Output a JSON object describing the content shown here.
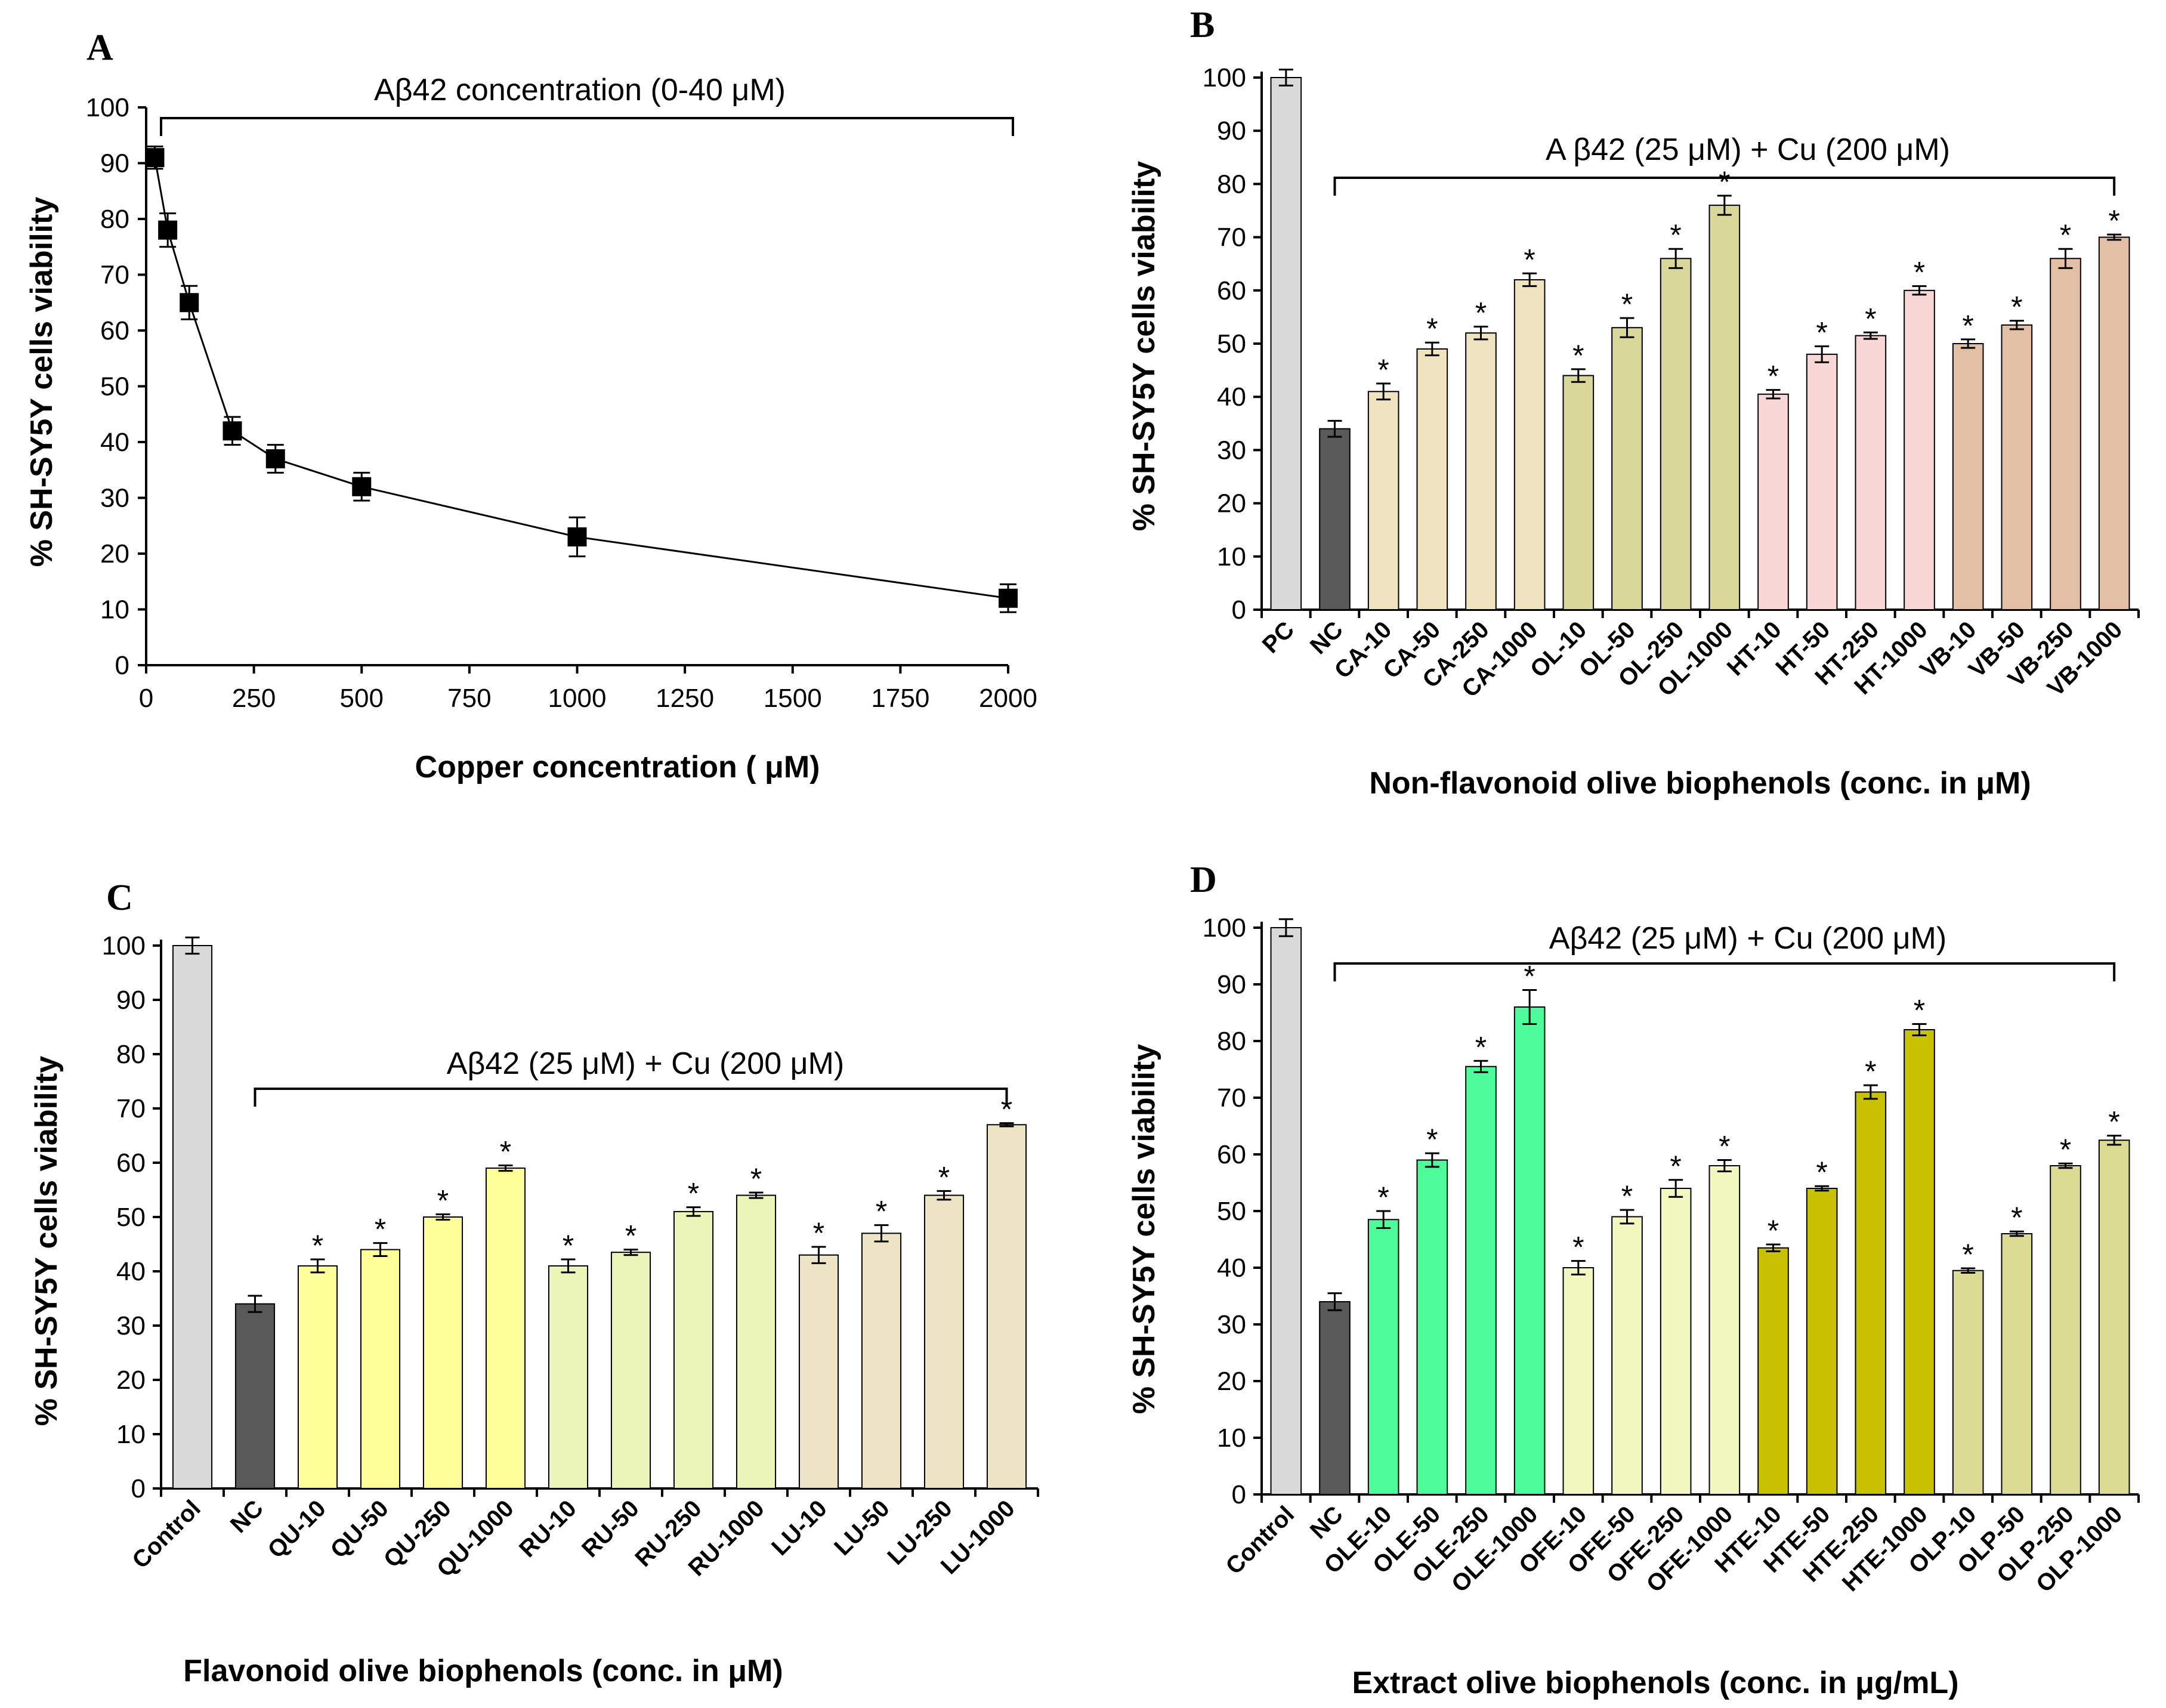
{
  "chart_data": [
    {
      "panel": "A",
      "type": "line",
      "title": "",
      "xlabel": "Copper concentration ( μM)",
      "ylabel": "% SH-SY5Y  cells viability",
      "xlim": [
        0,
        2000
      ],
      "ylim": [
        0,
        100
      ],
      "xticks": [
        "0",
        "250",
        "500",
        "750",
        "1000",
        "1250",
        "1500",
        "1750",
        "2000"
      ],
      "yticks": [
        "0",
        "10",
        "20",
        "30",
        "40",
        "50",
        "60",
        "70",
        "80",
        "90",
        "100"
      ],
      "bracket_label": "Aβ42  concentration  (0-40 μM)",
      "series": [
        {
          "name": "viability",
          "x": [
            20,
            50,
            100,
            200,
            300,
            500,
            1000,
            2000
          ],
          "y": [
            91,
            78,
            65,
            42,
            37,
            32,
            23,
            12
          ],
          "err": [
            2,
            3,
            3,
            2.5,
            2.5,
            2.5,
            3.5,
            2.5
          ]
        }
      ]
    },
    {
      "panel": "B",
      "type": "bar",
      "title": "",
      "xlabel": "Non-flavonoid olive biophenols (conc. in          μM)",
      "ylabel": "% SH-SY5Y cells viability",
      "ylim": [
        0,
        100
      ],
      "yticks": [
        "0",
        "10",
        "20",
        "30",
        "40",
        "50",
        "60",
        "70",
        "80",
        "90",
        "100"
      ],
      "bracket_label": "A β42 (25  μM) + Cu (200  μM)",
      "categories": [
        "PC",
        "NC",
        "CA-10",
        "CA-50",
        "CA-250",
        "CA-1000",
        "OL-10",
        "OL-50",
        "OL-250",
        "OL-1000",
        "HT-10",
        "HT-50",
        "HT-250",
        "HT-1000",
        "VB-10",
        "VB-50",
        "VB-250",
        "VB-1000"
      ],
      "values": [
        100,
        34,
        41,
        49,
        52,
        62,
        44,
        53,
        66,
        76,
        40.5,
        48,
        51.5,
        60,
        50,
        53.5,
        66,
        70
      ],
      "errors": [
        1.5,
        1.5,
        1.5,
        1.2,
        1.2,
        1.2,
        1.2,
        1.8,
        1.8,
        1.8,
        0.8,
        1.5,
        0.6,
        0.8,
        0.8,
        0.8,
        1.8,
        0.5
      ],
      "significant": [
        false,
        false,
        true,
        true,
        true,
        true,
        true,
        true,
        true,
        true,
        true,
        true,
        true,
        true,
        true,
        true,
        true,
        true
      ],
      "colors": [
        "#d9d9d9",
        "#595959",
        "#efe4bf",
        "#efe4bf",
        "#efe4bf",
        "#efe4bf",
        "#d9d89a",
        "#d9d89a",
        "#d9d89a",
        "#d9d89a",
        "#fad7d7",
        "#fad7d7",
        "#fad7d7",
        "#fad7d7",
        "#e3bfa6",
        "#e3bfa6",
        "#e3bfa6",
        "#e3bfa6"
      ],
      "star": "*"
    },
    {
      "panel": "C",
      "type": "bar",
      "title": "",
      "xlabel": "Flavonoid olive biophenols (conc. in                 μM)",
      "ylabel": "% SH-SY5Y cells viability",
      "ylim": [
        0,
        100
      ],
      "yticks": [
        "0",
        "10",
        "20",
        "30",
        "40",
        "50",
        "60",
        "70",
        "80",
        "90",
        "100"
      ],
      "bracket_label": "Aβ42 (25  μM) + Cu (200   μM)",
      "categories": [
        "Control",
        "NC",
        "QU-10",
        "QU-50",
        "QU-250",
        "QU-1000",
        "RU-10",
        "RU-50",
        "RU-250",
        "RU-1000",
        "LU-10",
        "LU-50",
        "LU-250",
        "LU-1000"
      ],
      "values": [
        100,
        34,
        41,
        44,
        50,
        59,
        41,
        43.5,
        51,
        54,
        43,
        47,
        54,
        67
      ],
      "errors": [
        1.5,
        1.5,
        1.2,
        1.2,
        0.5,
        0.5,
        1.2,
        0.5,
        0.8,
        0.5,
        1.5,
        1.5,
        0.8,
        0.3
      ],
      "significant": [
        false,
        false,
        true,
        true,
        true,
        true,
        true,
        true,
        true,
        true,
        true,
        true,
        true,
        true
      ],
      "colors": [
        "#d9d9d9",
        "#595959",
        "#ffff99",
        "#ffff99",
        "#ffff99",
        "#ffff99",
        "#ecf5b8",
        "#ecf5b8",
        "#ecf5b8",
        "#ecf5b8",
        "#ede4c6",
        "#ede4c6",
        "#ede4c6",
        "#ede4c6"
      ],
      "star": "*"
    },
    {
      "panel": "D",
      "type": "bar",
      "title": "",
      "xlabel": "Extract olive biophenols (conc. in          μg/mL)",
      "ylabel": "% SH-SY5Y cells viability",
      "ylim": [
        0,
        100
      ],
      "yticks": [
        "0",
        "10",
        "20",
        "30",
        "40",
        "50",
        "60",
        "70",
        "80",
        "90",
        "100"
      ],
      "bracket_label": "Aβ42 (25  μM) + Cu (200    μM)",
      "categories": [
        "Control",
        "NC",
        "OLE-10",
        "OLE-50",
        "OLE-250",
        "OLE-1000",
        "OFE-10",
        "OFE-50",
        "OFE-250",
        "OFE-1000",
        "HTE-10",
        "HTE-50",
        "HTE-250",
        "HTE-1000",
        "OLP-10",
        "OLP-50",
        "OLP-250",
        "OLP-1000"
      ],
      "values": [
        100,
        34,
        48.5,
        59,
        75.5,
        86,
        40,
        49,
        54,
        58,
        43.5,
        54,
        71,
        82,
        39.5,
        46,
        58,
        62.5
      ],
      "errors": [
        1.5,
        1.5,
        1.5,
        1.2,
        1.0,
        3.0,
        1.2,
        1.2,
        1.5,
        1.0,
        0.6,
        0.4,
        1.2,
        1.0,
        0.4,
        0.4,
        0.4,
        0.8
      ],
      "significant": [
        false,
        false,
        true,
        true,
        true,
        true,
        true,
        true,
        true,
        true,
        true,
        true,
        true,
        true,
        true,
        true,
        true,
        true
      ],
      "colors": [
        "#d9d9d9",
        "#595959",
        "#4dfc9a",
        "#4dfc9a",
        "#4dfc9a",
        "#4dfc9a",
        "#f3f8c1",
        "#f3f8c1",
        "#f3f8c1",
        "#f3f8c1",
        "#c8c200",
        "#c8c200",
        "#c8c200",
        "#c8c200",
        "#dcdb93",
        "#dcdb93",
        "#dcdb93",
        "#dcdb93"
      ],
      "star": "*"
    }
  ]
}
